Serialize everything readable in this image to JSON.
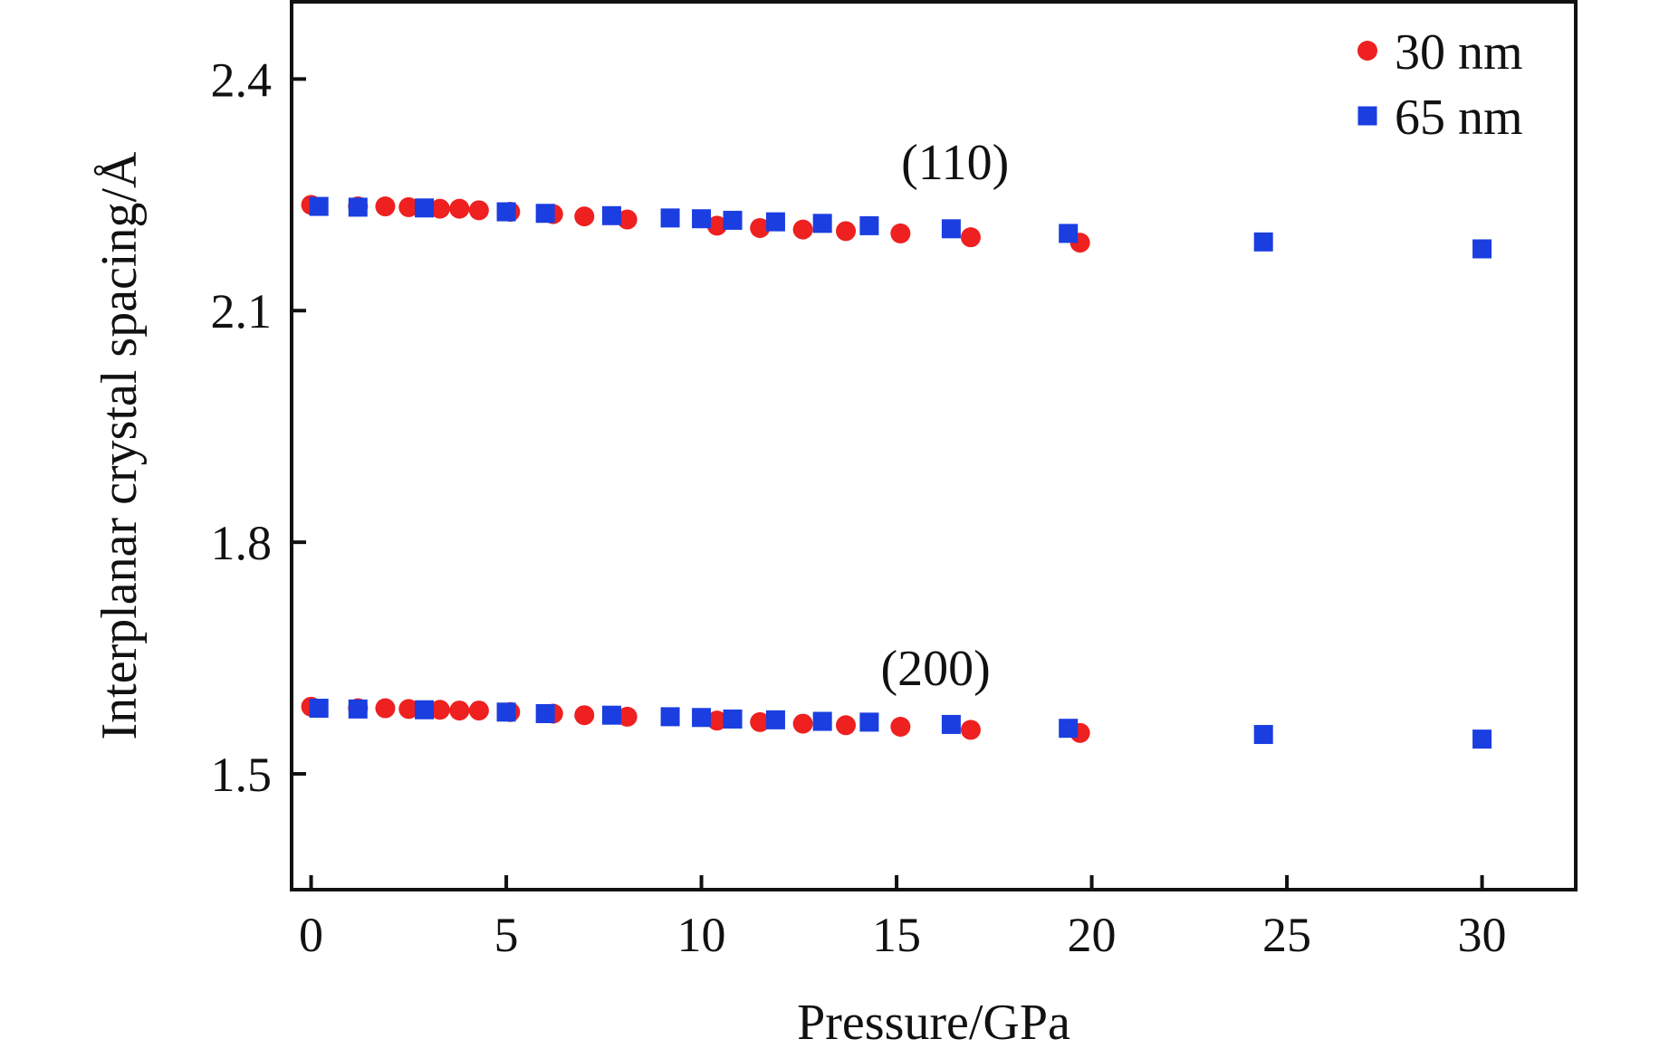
{
  "chart_data": {
    "type": "scatter",
    "title": "",
    "xlabel": "Pressure/GPa",
    "ylabel": "Interplanar crystal spacing/Å",
    "xlim": [
      -0.5,
      32.4
    ],
    "ylim": [
      1.35,
      2.5
    ],
    "x_ticks": [
      0,
      5,
      10,
      15,
      20,
      25,
      30
    ],
    "y_ticks": [
      1.5,
      1.8,
      2.1,
      2.4
    ],
    "x_tick_labels": [
      "0",
      "5",
      "10",
      "15",
      "20",
      "25",
      "30"
    ],
    "y_tick_labels": [
      "1.5",
      "1.8",
      "2.1",
      "2.4"
    ],
    "grid": false,
    "legend_position": "top-right",
    "annotations": [
      {
        "text": "(110)",
        "x": 16.5,
        "y": 2.27
      },
      {
        "text": "(200)",
        "x": 16.0,
        "y": 1.615
      }
    ],
    "series": [
      {
        "name": "30 nm",
        "marker": "circle",
        "color": "#ee2020",
        "points": [
          [
            0.0,
            2.237
          ],
          [
            1.2,
            2.235
          ],
          [
            1.9,
            2.235
          ],
          [
            2.5,
            2.234
          ],
          [
            3.3,
            2.232
          ],
          [
            3.8,
            2.232
          ],
          [
            4.3,
            2.23
          ],
          [
            5.1,
            2.228
          ],
          [
            6.2,
            2.225
          ],
          [
            7.0,
            2.222
          ],
          [
            8.1,
            2.218
          ],
          [
            10.4,
            2.21
          ],
          [
            11.5,
            2.207
          ],
          [
            12.6,
            2.205
          ],
          [
            13.7,
            2.203
          ],
          [
            15.1,
            2.2
          ],
          [
            16.9,
            2.195
          ],
          [
            19.7,
            2.188
          ],
          [
            0.0,
            1.587
          ],
          [
            1.2,
            1.585
          ],
          [
            1.9,
            1.585
          ],
          [
            2.5,
            1.584
          ],
          [
            3.3,
            1.583
          ],
          [
            3.8,
            1.582
          ],
          [
            4.3,
            1.582
          ],
          [
            5.1,
            1.58
          ],
          [
            6.2,
            1.578
          ],
          [
            7.0,
            1.576
          ],
          [
            8.1,
            1.574
          ],
          [
            10.4,
            1.569
          ],
          [
            11.5,
            1.567
          ],
          [
            12.6,
            1.565
          ],
          [
            13.7,
            1.563
          ],
          [
            15.1,
            1.561
          ],
          [
            16.9,
            1.557
          ],
          [
            19.7,
            1.553
          ]
        ]
      },
      {
        "name": "65 nm",
        "marker": "square",
        "color": "#1a3ee0",
        "points": [
          [
            0.2,
            2.235
          ],
          [
            1.2,
            2.234
          ],
          [
            2.9,
            2.233
          ],
          [
            5.0,
            2.228
          ],
          [
            6.0,
            2.226
          ],
          [
            7.7,
            2.223
          ],
          [
            9.2,
            2.22
          ],
          [
            10.0,
            2.219
          ],
          [
            10.8,
            2.217
          ],
          [
            11.9,
            2.215
          ],
          [
            13.1,
            2.213
          ],
          [
            14.3,
            2.21
          ],
          [
            16.4,
            2.206
          ],
          [
            19.4,
            2.2
          ],
          [
            24.4,
            2.189
          ],
          [
            30.0,
            2.18
          ],
          [
            0.2,
            1.585
          ],
          [
            1.2,
            1.584
          ],
          [
            2.9,
            1.583
          ],
          [
            5.0,
            1.58
          ],
          [
            6.0,
            1.578
          ],
          [
            7.7,
            1.576
          ],
          [
            9.2,
            1.574
          ],
          [
            10.0,
            1.573
          ],
          [
            10.8,
            1.571
          ],
          [
            11.9,
            1.57
          ],
          [
            13.1,
            1.568
          ],
          [
            14.3,
            1.567
          ],
          [
            16.4,
            1.564
          ],
          [
            19.4,
            1.559
          ],
          [
            24.4,
            1.551
          ],
          [
            30.0,
            1.545
          ]
        ]
      }
    ]
  }
}
